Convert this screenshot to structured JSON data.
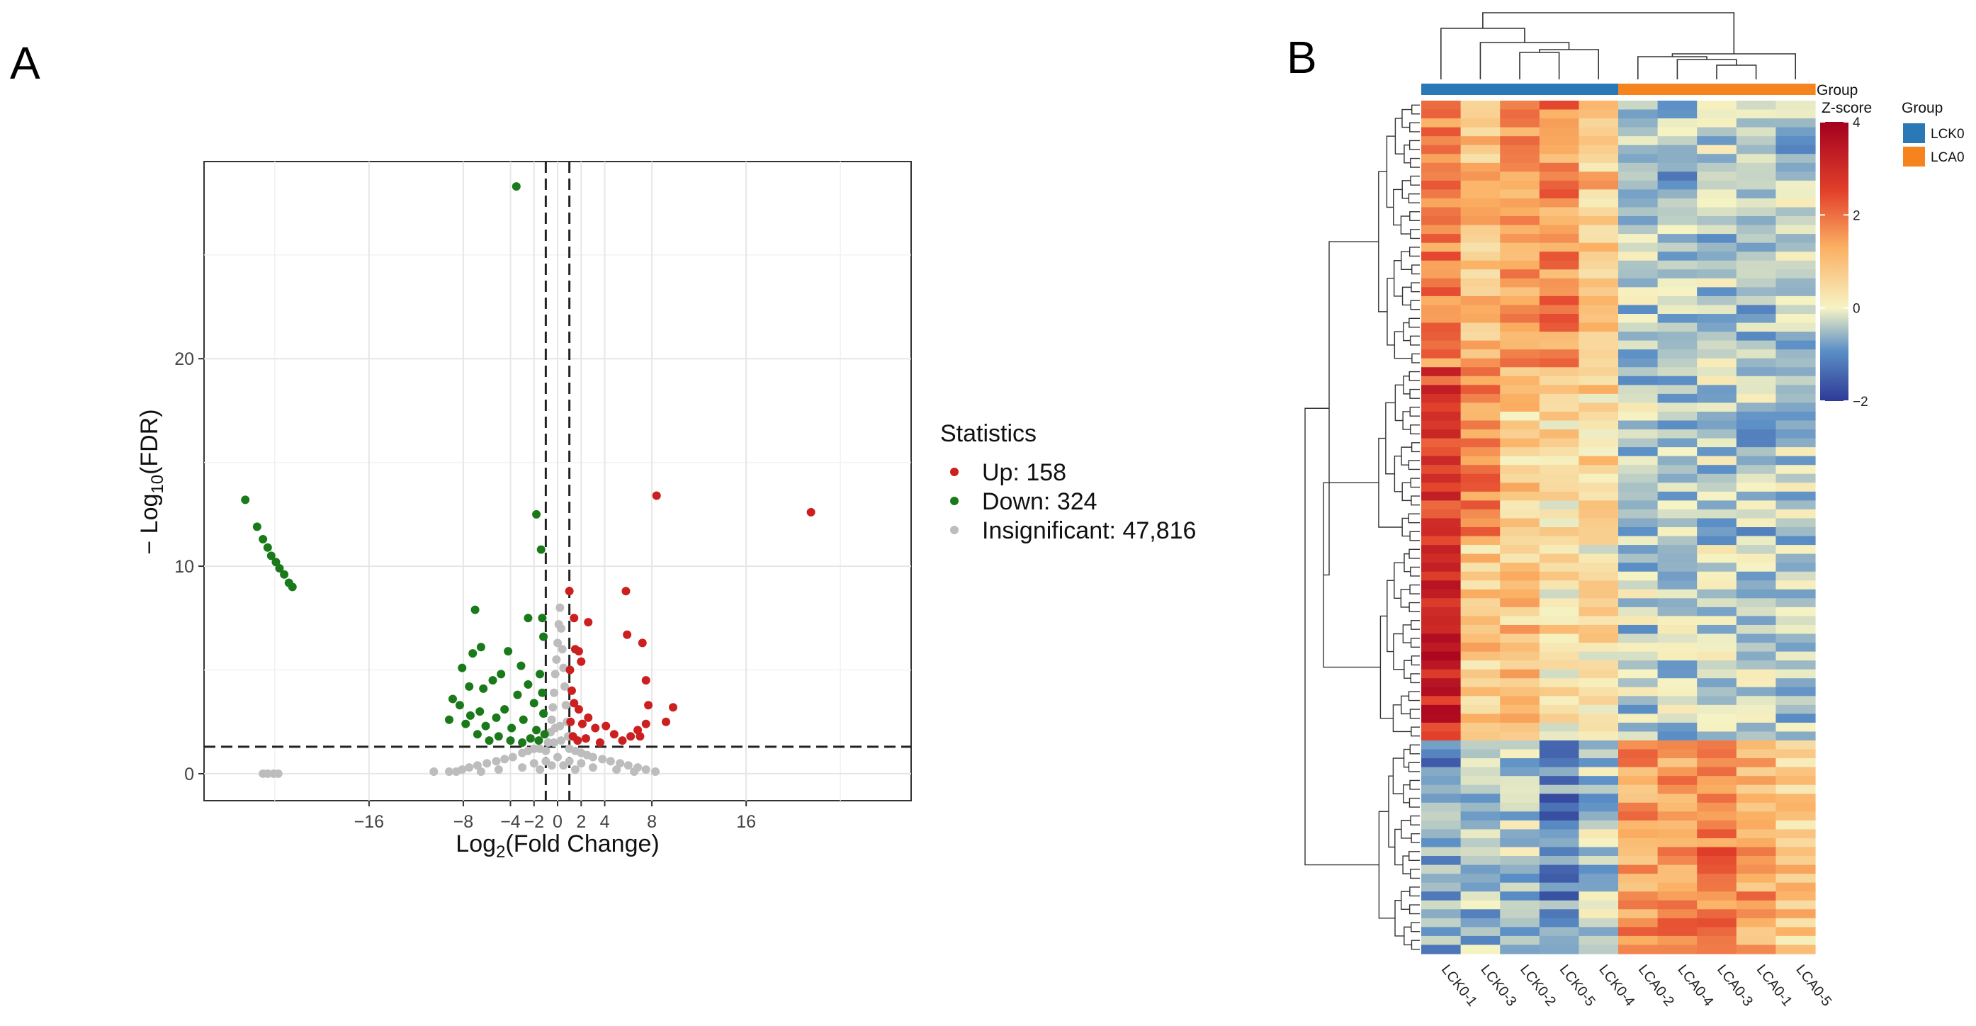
{
  "panels": {
    "a_label": "A",
    "b_label": "B"
  },
  "colors": {
    "up": "#cc1f1f",
    "down": "#1a7a1a",
    "insignificant": "#bdbdbd",
    "lck0": "#2a78b6",
    "lca0": "#f5841f"
  },
  "chart_data": [
    {
      "type": "scatter",
      "title": "",
      "xlabel": "Log2(Fold Change)",
      "ylabel": "−Log10(FDR)",
      "xlim": [
        -30,
        30
      ],
      "ylim": [
        -1.3,
        29.5
      ],
      "xticks": [
        -16,
        -8,
        -4,
        -2,
        0,
        2,
        4,
        8,
        16
      ],
      "xtick_labels": [
        "−16",
        "−8",
        "−4",
        "−2",
        "0",
        "2",
        "4",
        "8",
        "16"
      ],
      "yticks": [
        0,
        10,
        20
      ],
      "ytick_labels": [
        "0",
        "10",
        "20"
      ],
      "threshold_lines": {
        "x": [
          -1,
          1
        ],
        "y": 1.3
      },
      "legend": {
        "title": "Statistics",
        "entries": [
          {
            "key": "up",
            "label": "Up: 158"
          },
          {
            "key": "down",
            "label": "Down: 324"
          },
          {
            "key": "insignificant",
            "label": "Insignificant: 47,816"
          }
        ]
      },
      "series": [
        {
          "name": "Up",
          "points": [
            [
              21.5,
              12.6
            ],
            [
              8.4,
              13.4
            ],
            [
              5.8,
              8.8
            ],
            [
              1,
              8.8
            ],
            [
              1.4,
              7.5
            ],
            [
              2.6,
              7.3
            ],
            [
              7.2,
              6.3
            ],
            [
              5.9,
              6.7
            ],
            [
              7.5,
              4.5
            ],
            [
              2,
              5.4
            ],
            [
              1.8,
              5.9
            ],
            [
              1.5,
              6
            ],
            [
              9.8,
              3.2
            ],
            [
              9.2,
              2.5
            ],
            [
              7.7,
              3.3
            ],
            [
              7.5,
              2.4
            ],
            [
              7,
              1.8
            ],
            [
              6.8,
              2.1
            ],
            [
              6.2,
              1.8
            ],
            [
              5.5,
              1.6
            ],
            [
              4.8,
              1.9
            ],
            [
              4.1,
              2.3
            ],
            [
              3.2,
              2.2
            ],
            [
              2.6,
              2.7
            ],
            [
              2.1,
              2.4
            ],
            [
              1.8,
              3.1
            ],
            [
              1.4,
              3.4
            ],
            [
              1.2,
              4
            ],
            [
              1.1,
              2.5
            ],
            [
              1.3,
              1.8
            ],
            [
              1.7,
              1.6
            ],
            [
              2.4,
              1.7
            ],
            [
              3.6,
              1.5
            ],
            [
              1.05,
              5
            ]
          ]
        },
        {
          "name": "Down",
          "points": [
            [
              -26.5,
              13.2
            ],
            [
              -25.5,
              11.9
            ],
            [
              -25,
              11.3
            ],
            [
              -24.6,
              10.9
            ],
            [
              -24.3,
              10.5
            ],
            [
              -23.9,
              10.2
            ],
            [
              -23.6,
              9.9
            ],
            [
              -23.2,
              9.6
            ],
            [
              -22.8,
              9.2
            ],
            [
              -22.5,
              9
            ],
            [
              -3.5,
              28.3
            ],
            [
              -1.8,
              12.5
            ],
            [
              -1.4,
              10.8
            ],
            [
              -7,
              7.9
            ],
            [
              -6.5,
              6.1
            ],
            [
              -7.2,
              5.8
            ],
            [
              -8.1,
              5.1
            ],
            [
              -2.5,
              7.5
            ],
            [
              -1.3,
              7.5
            ],
            [
              -1.2,
              6.6
            ],
            [
              -4.2,
              5.9
            ],
            [
              -5.5,
              4.5
            ],
            [
              -6.3,
              4.1
            ],
            [
              -7.5,
              4.2
            ],
            [
              -8.9,
              3.6
            ],
            [
              -9.2,
              2.6
            ],
            [
              -8.3,
              3.3
            ],
            [
              -7.4,
              2.8
            ],
            [
              -6.6,
              3
            ],
            [
              -6.1,
              2.3
            ],
            [
              -5.2,
              2.7
            ],
            [
              -4.5,
              3.1
            ],
            [
              -3.9,
              2.2
            ],
            [
              -3.4,
              3.8
            ],
            [
              -2.9,
              2.6
            ],
            [
              -2.5,
              4.3
            ],
            [
              -2,
              3.4
            ],
            [
              -1.8,
              2.1
            ],
            [
              -1.5,
              4.8
            ],
            [
              -1.3,
              3.9
            ],
            [
              -1.2,
              2.9
            ],
            [
              -1.1,
              1.9
            ],
            [
              -1.6,
              1.6
            ],
            [
              -2.3,
              1.7
            ],
            [
              -3,
              1.5
            ],
            [
              -4,
              1.6
            ],
            [
              -5,
              1.8
            ],
            [
              -5.8,
              1.6
            ],
            [
              -6.8,
              1.9
            ],
            [
              -7.8,
              2.4
            ],
            [
              -4.8,
              4.8
            ],
            [
              -3.1,
              5.2
            ]
          ]
        },
        {
          "name": "Insignificant",
          "points": [
            [
              -25,
              0
            ],
            [
              -24.6,
              0
            ],
            [
              -24.1,
              0
            ],
            [
              -23.7,
              0
            ],
            [
              -10.5,
              0.1
            ],
            [
              -9.2,
              0.1
            ],
            [
              -8.6,
              0.1
            ],
            [
              -8.1,
              0.2
            ],
            [
              -7.5,
              0.3
            ],
            [
              -6.8,
              0.4
            ],
            [
              -6,
              0.5
            ],
            [
              -5.2,
              0.6
            ],
            [
              -4.5,
              0.7
            ],
            [
              -3.8,
              0.8
            ],
            [
              -3,
              1
            ],
            [
              -2.5,
              1.1
            ],
            [
              -2,
              1.2
            ],
            [
              -1.5,
              1.2
            ],
            [
              -1,
              1.1
            ],
            [
              -0.8,
              1.5
            ],
            [
              -0.6,
              2
            ],
            [
              -0.5,
              2.6
            ],
            [
              -0.4,
              3.2
            ],
            [
              -0.3,
              3.9
            ],
            [
              -0.2,
              4.8
            ],
            [
              -0.1,
              5.5
            ],
            [
              0,
              6.3
            ],
            [
              0.1,
              7.2
            ],
            [
              0.2,
              8
            ],
            [
              0.3,
              7
            ],
            [
              0.4,
              6
            ],
            [
              0.5,
              5.1
            ],
            [
              0.6,
              4.2
            ],
            [
              0.7,
              3.3
            ],
            [
              0.8,
              2.5
            ],
            [
              0.9,
              1.8
            ],
            [
              1,
              1.2
            ],
            [
              1.5,
              1.1
            ],
            [
              2,
              1
            ],
            [
              2.5,
              0.9
            ],
            [
              3,
              0.8
            ],
            [
              3.8,
              0.7
            ],
            [
              4.5,
              0.6
            ],
            [
              5.3,
              0.5
            ],
            [
              6,
              0.4
            ],
            [
              6.8,
              0.3
            ],
            [
              7.5,
              0.2
            ],
            [
              8.3,
              0.1
            ],
            [
              -2,
              0.5
            ],
            [
              -1,
              0.6
            ],
            [
              0,
              0.8
            ],
            [
              1,
              0.6
            ],
            [
              2,
              0.5
            ],
            [
              -3,
              0.3
            ],
            [
              3,
              0.3
            ],
            [
              -5,
              0.2
            ],
            [
              5,
              0.2
            ],
            [
              -6.5,
              0.1
            ],
            [
              6.5,
              0.1
            ],
            [
              -0.5,
              0.4
            ],
            [
              0.5,
              0.4
            ],
            [
              -1.5,
              0.2
            ],
            [
              1.5,
              0.2
            ],
            [
              -0.3,
              1.5
            ],
            [
              0.3,
              1.6
            ],
            [
              -0.2,
              2.2
            ],
            [
              0.2,
              2.3
            ]
          ]
        }
      ]
    },
    {
      "type": "heatmap",
      "columns": [
        "LCK0-1",
        "LCK0-3",
        "LCK0-2",
        "LCK0-5",
        "LCK0-4",
        "LCA0-2",
        "LCA0-4",
        "LCA0-3",
        "LCA0-1",
        "LCA0-5"
      ],
      "column_groups": [
        "LCK0",
        "LCK0",
        "LCK0",
        "LCK0",
        "LCK0",
        "LCA0",
        "LCA0",
        "LCA0",
        "LCA0",
        "LCA0"
      ],
      "n_rows": 96,
      "group_bar_label": "Group",
      "colorbar": {
        "title": "Z-score",
        "min": -2,
        "max": 4,
        "ticks": [
          4,
          2,
          0,
          -2
        ],
        "tick_labels": [
          "4",
          "2",
          "0",
          "−2"
        ]
      },
      "legend": {
        "title": "Group",
        "entries": [
          {
            "key": "lck0",
            "label": "LCK0"
          },
          {
            "key": "lca0",
            "label": "LCA0"
          }
        ]
      },
      "row_blocks": [
        {
          "rows": 30,
          "means": [
            1.8,
            0.9,
            1.6,
            1.7,
            0.9,
            -0.6,
            -0.7,
            -0.5,
            -0.6,
            -0.6
          ]
        },
        {
          "rows": 20,
          "means": [
            2.6,
            1.8,
            0.7,
            0.5,
            0.6,
            -0.5,
            -0.6,
            -0.5,
            -0.6,
            -0.5
          ]
        },
        {
          "rows": 22,
          "means": [
            3.1,
            0.8,
            0.9,
            0.4,
            0.3,
            -0.5,
            -0.5,
            -0.4,
            -0.5,
            -0.5
          ]
        },
        {
          "rows": 24,
          "means": [
            -1.0,
            -0.7,
            -0.5,
            -1.1,
            -0.5,
            1.5,
            1.6,
            1.9,
            1.4,
            0.8
          ]
        }
      ]
    }
  ]
}
